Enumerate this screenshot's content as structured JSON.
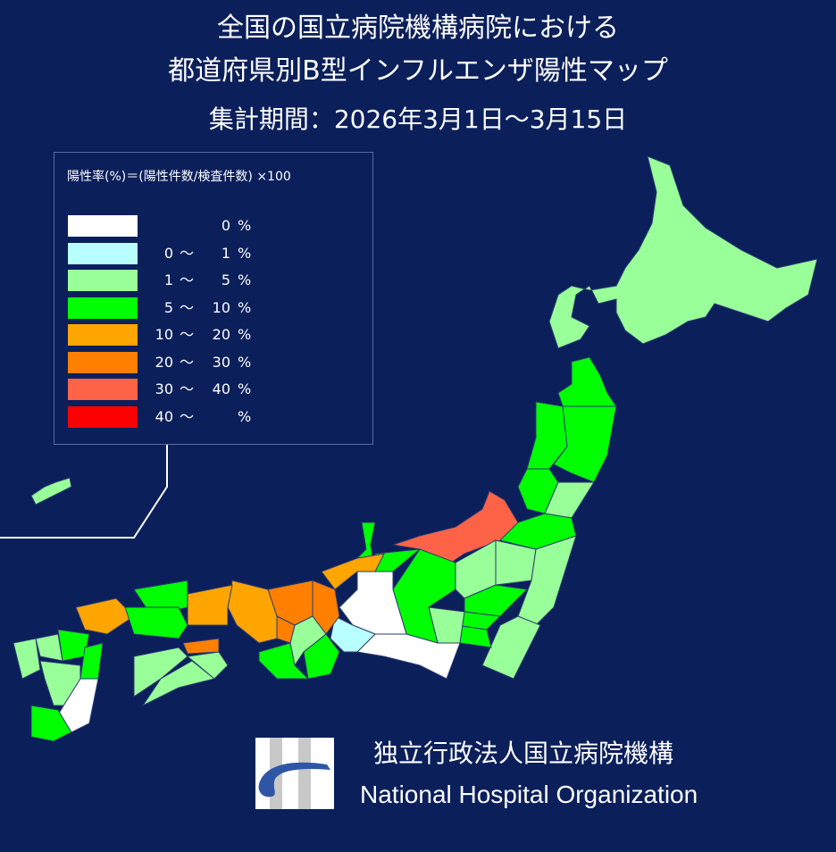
{
  "title": {
    "line1": "全国の国立病院機構病院における",
    "line2": "都道府県別B型インフルエンザ陽性マップ",
    "period": "集計期間：2026年3月1日～3月15日"
  },
  "legend": {
    "formula": "陽性率(%)＝(陽性件数/検査件数) ×100",
    "items": [
      {
        "lo": "",
        "tilde": "",
        "hi": "0",
        "unit": "%",
        "color": "#ffffff"
      },
      {
        "lo": "0",
        "tilde": "～",
        "hi": "1",
        "unit": "%",
        "color": "#b8ffff"
      },
      {
        "lo": "1",
        "tilde": "～",
        "hi": "5",
        "unit": "%",
        "color": "#99ff99"
      },
      {
        "lo": "5",
        "tilde": "～",
        "hi": "10",
        "unit": "%",
        "color": "#00ff00"
      },
      {
        "lo": "10",
        "tilde": "～",
        "hi": "20",
        "unit": "%",
        "color": "#ffa500"
      },
      {
        "lo": "20",
        "tilde": "～",
        "hi": "30",
        "unit": "%",
        "color": "#ff8000"
      },
      {
        "lo": "30",
        "tilde": "～",
        "hi": "40",
        "unit": "%",
        "color": "#ff6347"
      },
      {
        "lo": "40",
        "tilde": "～",
        "hi": "",
        "unit": "%",
        "color": "#ff0000"
      }
    ]
  },
  "map": {
    "background": "#0b1f5b",
    "region_levels": [
      2,
      3,
      3,
      3,
      3,
      2,
      3,
      6,
      2,
      2,
      2,
      3,
      2,
      3,
      3,
      2,
      3,
      0,
      0,
      1,
      3,
      3,
      4,
      5,
      5,
      3,
      2,
      5,
      3,
      4,
      4,
      3,
      4,
      3,
      5,
      2,
      2,
      2,
      3,
      2,
      2,
      3,
      2,
      0,
      3,
      2
    ]
  },
  "organization": {
    "name_ja": "独立行政法人国立病院機構",
    "name_en": "National Hospital Organization"
  }
}
